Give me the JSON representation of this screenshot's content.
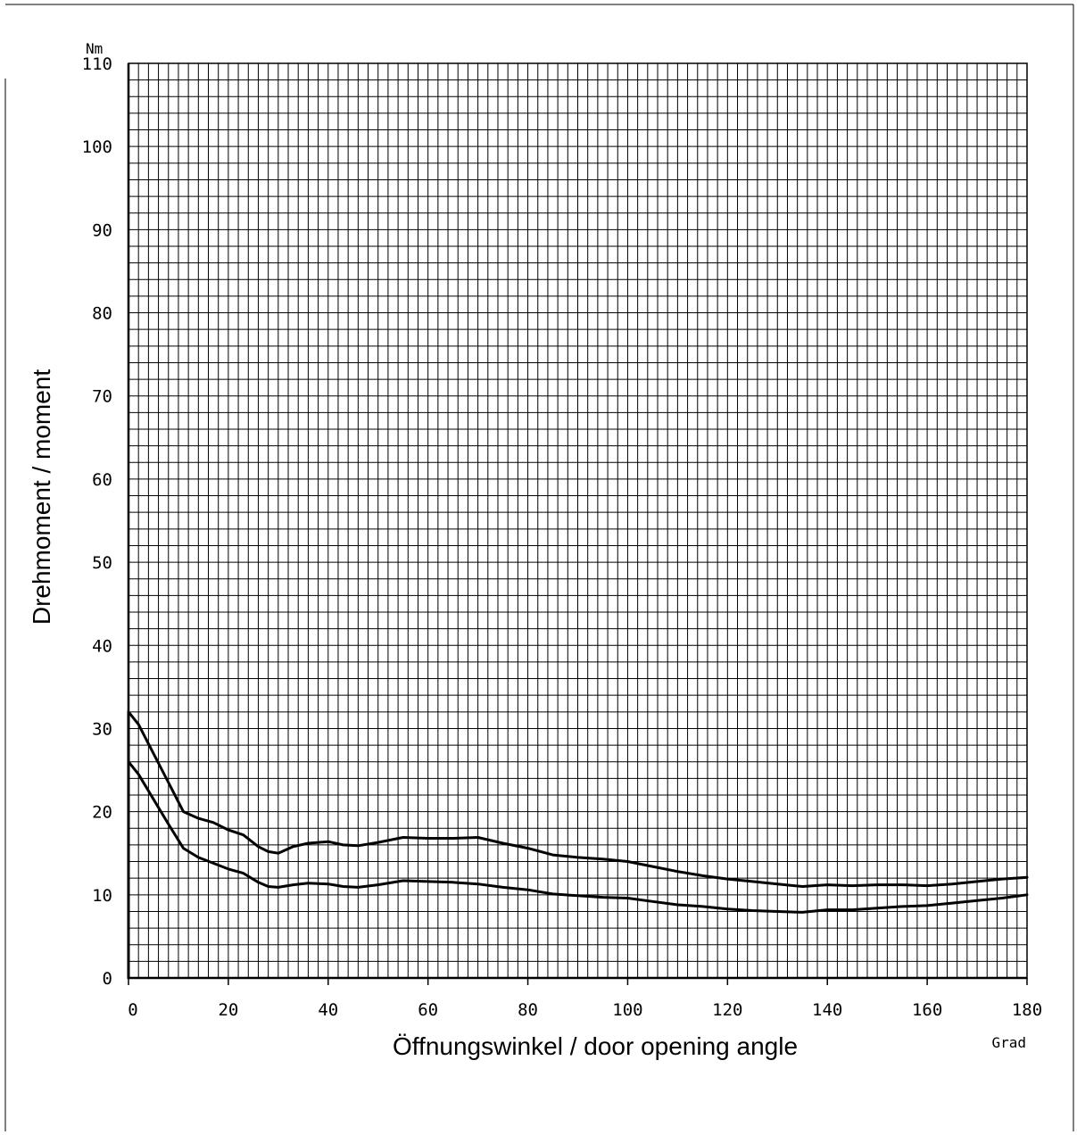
{
  "chart_data": {
    "type": "line",
    "title": "",
    "xlabel": "Öffnungswinkel / door opening angle",
    "ylabel": "Drehmoment / moment",
    "x_unit": "Grad",
    "y_unit": "Nm",
    "xlim": [
      0,
      180
    ],
    "ylim": [
      0,
      110
    ],
    "x_ticks": [
      "0",
      "20",
      "40",
      "60",
      "80",
      "100",
      "120",
      "140",
      "160",
      "180"
    ],
    "y_ticks": [
      "0",
      "10",
      "20",
      "30",
      "40",
      "50",
      "60",
      "70",
      "80",
      "90",
      "100",
      "110"
    ],
    "grid": true,
    "x_minor_step": 2,
    "y_minor_step": 2,
    "legend": "none",
    "line_color": "#000000",
    "series": [
      {
        "x": [
          0,
          2,
          5,
          8,
          11,
          14,
          17,
          20,
          23,
          26,
          28,
          30,
          33,
          36,
          40,
          43,
          46,
          50,
          55,
          60,
          65,
          70,
          75,
          80,
          85,
          90,
          95,
          100,
          105,
          110,
          115,
          120,
          125,
          130,
          135,
          140,
          145,
          150,
          155,
          160,
          165,
          170,
          175,
          180
        ],
        "values": [
          32,
          30.5,
          27,
          23.5,
          20,
          19.2,
          18.7,
          17.8,
          17.2,
          15.8,
          15.2,
          15.0,
          15.8,
          16.2,
          16.4,
          16.0,
          15.9,
          16.3,
          16.9,
          16.8,
          16.8,
          16.9,
          16.2,
          15.6,
          14.8,
          14.5,
          14.3,
          14.0,
          13.4,
          12.8,
          12.3,
          11.9,
          11.6,
          11.3,
          11.0,
          11.2,
          11.1,
          11.2,
          11.2,
          11.1,
          11.3,
          11.6,
          11.9,
          12.1
        ]
      },
      {
        "x": [
          0,
          2,
          5,
          8,
          11,
          14,
          17,
          20,
          23,
          26,
          28,
          30,
          33,
          36,
          40,
          43,
          46,
          50,
          55,
          60,
          65,
          70,
          75,
          80,
          85,
          90,
          95,
          100,
          105,
          110,
          115,
          120,
          125,
          130,
          135,
          140,
          145,
          150,
          155,
          160,
          165,
          170,
          175,
          180
        ],
        "values": [
          26,
          24.5,
          21.5,
          18.5,
          15.6,
          14.5,
          13.8,
          13.1,
          12.6,
          11.5,
          11.0,
          10.9,
          11.2,
          11.4,
          11.3,
          11.0,
          10.9,
          11.2,
          11.7,
          11.6,
          11.5,
          11.3,
          10.9,
          10.6,
          10.1,
          9.9,
          9.7,
          9.6,
          9.2,
          8.8,
          8.6,
          8.3,
          8.1,
          8.0,
          7.9,
          8.2,
          8.2,
          8.4,
          8.6,
          8.7,
          9.0,
          9.3,
          9.6,
          10.0
        ]
      }
    ]
  }
}
